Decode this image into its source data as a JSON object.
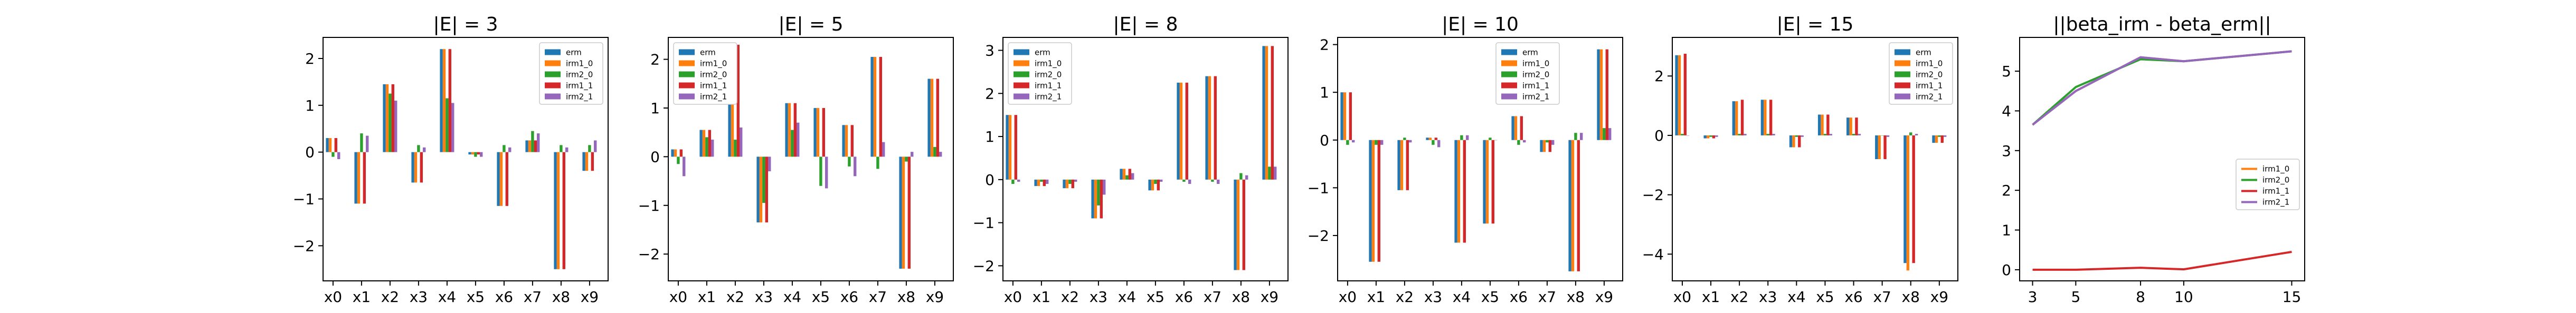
{
  "colors": {
    "erm": "#1f77b4",
    "irm1_0": "#ff7f0e",
    "irm2_0": "#2ca02c",
    "irm1_1": "#d62728",
    "irm2_1": "#9467bd"
  },
  "chart_data": [
    {
      "type": "bar",
      "title": "|E| = 3",
      "categories": [
        "x0",
        "x1",
        "x2",
        "x3",
        "x4",
        "x5",
        "x6",
        "x7",
        "x8",
        "x9"
      ],
      "ylim": [
        -2.75,
        2.45
      ],
      "yticks": [
        -2,
        -1,
        0,
        1,
        2
      ],
      "legend_position": "top-right",
      "series": [
        {
          "name": "erm",
          "values": [
            0.3,
            -1.1,
            1.45,
            -0.65,
            2.2,
            -0.05,
            -1.15,
            0.25,
            -2.5,
            -0.4
          ]
        },
        {
          "name": "irm1_0",
          "values": [
            0.3,
            -1.1,
            1.45,
            -0.65,
            2.2,
            -0.05,
            -1.15,
            0.25,
            -2.5,
            -0.4
          ]
        },
        {
          "name": "irm2_0",
          "values": [
            -0.1,
            0.4,
            1.25,
            0.15,
            1.15,
            -0.1,
            0.15,
            0.45,
            0.15,
            0.15
          ]
        },
        {
          "name": "irm1_1",
          "values": [
            0.3,
            -1.1,
            1.45,
            -0.65,
            2.2,
            -0.05,
            -1.15,
            0.25,
            -2.5,
            -0.4
          ]
        },
        {
          "name": "irm2_1",
          "values": [
            -0.15,
            0.35,
            1.1,
            0.1,
            1.05,
            -0.1,
            0.1,
            0.4,
            0.1,
            0.25
          ]
        }
      ]
    },
    {
      "type": "bar",
      "title": "|E| = 5",
      "categories": [
        "x0",
        "x1",
        "x2",
        "x3",
        "x4",
        "x5",
        "x6",
        "x7",
        "x8",
        "x9"
      ],
      "ylim": [
        -2.55,
        2.45
      ],
      "yticks": [
        -2,
        -1,
        0,
        1,
        2
      ],
      "legend_position": "top-left",
      "series": [
        {
          "name": "erm",
          "values": [
            0.15,
            0.55,
            2.3,
            -1.35,
            1.1,
            1.0,
            0.65,
            2.05,
            -2.3,
            1.6
          ]
        },
        {
          "name": "irm1_0",
          "values": [
            0.15,
            0.55,
            2.3,
            -1.35,
            1.1,
            1.0,
            0.65,
            2.05,
            -2.3,
            1.6
          ]
        },
        {
          "name": "irm2_0",
          "values": [
            -0.15,
            0.4,
            0.35,
            -0.95,
            0.55,
            -0.6,
            -0.2,
            -0.25,
            -0.1,
            0.2
          ]
        },
        {
          "name": "irm1_1",
          "values": [
            0.15,
            0.55,
            2.3,
            -1.35,
            1.1,
            1.0,
            0.65,
            2.05,
            -2.3,
            1.6
          ]
        },
        {
          "name": "irm2_1",
          "values": [
            -0.4,
            0.35,
            0.6,
            -0.3,
            0.7,
            -0.65,
            -0.4,
            0.3,
            0.1,
            0.1
          ]
        }
      ]
    },
    {
      "type": "bar",
      "title": "|E| = 8",
      "categories": [
        "x0",
        "x1",
        "x2",
        "x3",
        "x4",
        "x5",
        "x6",
        "x7",
        "x8",
        "x9"
      ],
      "ylim": [
        -2.35,
        3.3
      ],
      "yticks": [
        -2,
        -1,
        0,
        1,
        2,
        3
      ],
      "legend_position": "top-left",
      "series": [
        {
          "name": "erm",
          "values": [
            1.5,
            -0.15,
            -0.2,
            -0.9,
            0.25,
            -0.25,
            2.25,
            2.4,
            -2.1,
            3.1
          ]
        },
        {
          "name": "irm1_0",
          "values": [
            1.5,
            -0.15,
            -0.2,
            -0.9,
            0.25,
            -0.25,
            2.25,
            2.4,
            -2.1,
            3.1
          ]
        },
        {
          "name": "irm2_0",
          "values": [
            -0.1,
            -0.05,
            -0.1,
            -0.6,
            0.1,
            -0.1,
            -0.05,
            -0.05,
            0.15,
            0.3
          ]
        },
        {
          "name": "irm1_1",
          "values": [
            1.5,
            -0.15,
            -0.2,
            -0.9,
            0.25,
            -0.25,
            2.25,
            2.4,
            -2.1,
            3.1
          ]
        },
        {
          "name": "irm2_1",
          "values": [
            -0.05,
            -0.1,
            -0.05,
            -0.35,
            0.15,
            -0.05,
            -0.1,
            -0.1,
            0.1,
            0.3
          ]
        }
      ]
    },
    {
      "type": "bar",
      "title": "|E| = 10",
      "categories": [
        "x0",
        "x1",
        "x2",
        "x3",
        "x4",
        "x5",
        "x6",
        "x7",
        "x8",
        "x9"
      ],
      "ylim": [
        -2.95,
        2.15
      ],
      "yticks": [
        -2,
        -1,
        0,
        1,
        2
      ],
      "legend_position": "top-center",
      "series": [
        {
          "name": "erm",
          "values": [
            1.0,
            -2.55,
            -1.05,
            0.05,
            -2.15,
            -1.75,
            0.5,
            -0.25,
            -2.75,
            1.9
          ]
        },
        {
          "name": "irm1_0",
          "values": [
            1.0,
            -2.55,
            -1.05,
            0.05,
            -2.15,
            -1.75,
            0.5,
            -0.25,
            -2.75,
            1.9
          ]
        },
        {
          "name": "irm2_0",
          "values": [
            -0.1,
            -0.1,
            0.05,
            -0.1,
            0.1,
            0.05,
            -0.1,
            -0.05,
            0.15,
            0.25
          ]
        },
        {
          "name": "irm1_1",
          "values": [
            1.0,
            -2.55,
            -1.05,
            0.05,
            -2.15,
            -1.75,
            0.5,
            -0.25,
            -2.75,
            1.9
          ]
        },
        {
          "name": "irm2_1",
          "values": [
            -0.05,
            -0.1,
            -0.05,
            -0.15,
            0.1,
            0.0,
            -0.05,
            -0.1,
            0.15,
            0.25
          ]
        }
      ]
    },
    {
      "type": "bar",
      "title": "|E| = 15",
      "categories": [
        "x0",
        "x1",
        "x2",
        "x3",
        "x4",
        "x5",
        "x6",
        "x7",
        "x8",
        "x9"
      ],
      "ylim": [
        -4.9,
        3.3
      ],
      "yticks": [
        -4,
        -2,
        0,
        2
      ],
      "legend_position": "top-right",
      "series": [
        {
          "name": "erm",
          "values": [
            2.7,
            -0.1,
            1.15,
            1.2,
            -0.4,
            0.7,
            0.6,
            -0.8,
            -4.3,
            -0.25
          ]
        },
        {
          "name": "irm1_0",
          "values": [
            2.7,
            -0.1,
            1.15,
            1.2,
            -0.4,
            0.7,
            0.6,
            -0.8,
            -4.55,
            -0.25
          ]
        },
        {
          "name": "irm2_0",
          "values": [
            0.05,
            -0.05,
            0.05,
            0.05,
            -0.05,
            0.05,
            0.05,
            0.0,
            0.1,
            -0.05
          ]
        },
        {
          "name": "irm1_1",
          "values": [
            2.75,
            -0.1,
            1.2,
            1.2,
            -0.4,
            0.7,
            0.6,
            -0.8,
            -4.3,
            -0.25
          ]
        },
        {
          "name": "irm2_1",
          "values": [
            0.0,
            -0.05,
            0.05,
            0.05,
            -0.05,
            0.05,
            0.05,
            -0.05,
            0.05,
            -0.05
          ]
        }
      ]
    },
    {
      "type": "line",
      "title": "||beta_irm - beta_erm||",
      "x": [
        3,
        5,
        8,
        10,
        15
      ],
      "xlim": [
        2.4,
        15.6
      ],
      "ylim": [
        -0.28,
        5.85
      ],
      "xticks": [
        3,
        5,
        8,
        10,
        15
      ],
      "yticks": [
        0,
        1,
        2,
        3,
        4,
        5
      ],
      "legend_position": "center-right",
      "series": [
        {
          "name": "irm1_0",
          "values": [
            3.65,
            4.5,
            5.35,
            5.25,
            5.5
          ]
        },
        {
          "name": "irm2_0",
          "values": [
            3.65,
            4.6,
            5.3,
            5.25,
            5.5
          ]
        },
        {
          "name": "irm1_1",
          "values": [
            0.0,
            0.0,
            0.05,
            0.01,
            0.45
          ]
        },
        {
          "name": "irm2_1",
          "values": [
            3.65,
            4.5,
            5.35,
            5.25,
            5.5
          ]
        }
      ]
    }
  ]
}
